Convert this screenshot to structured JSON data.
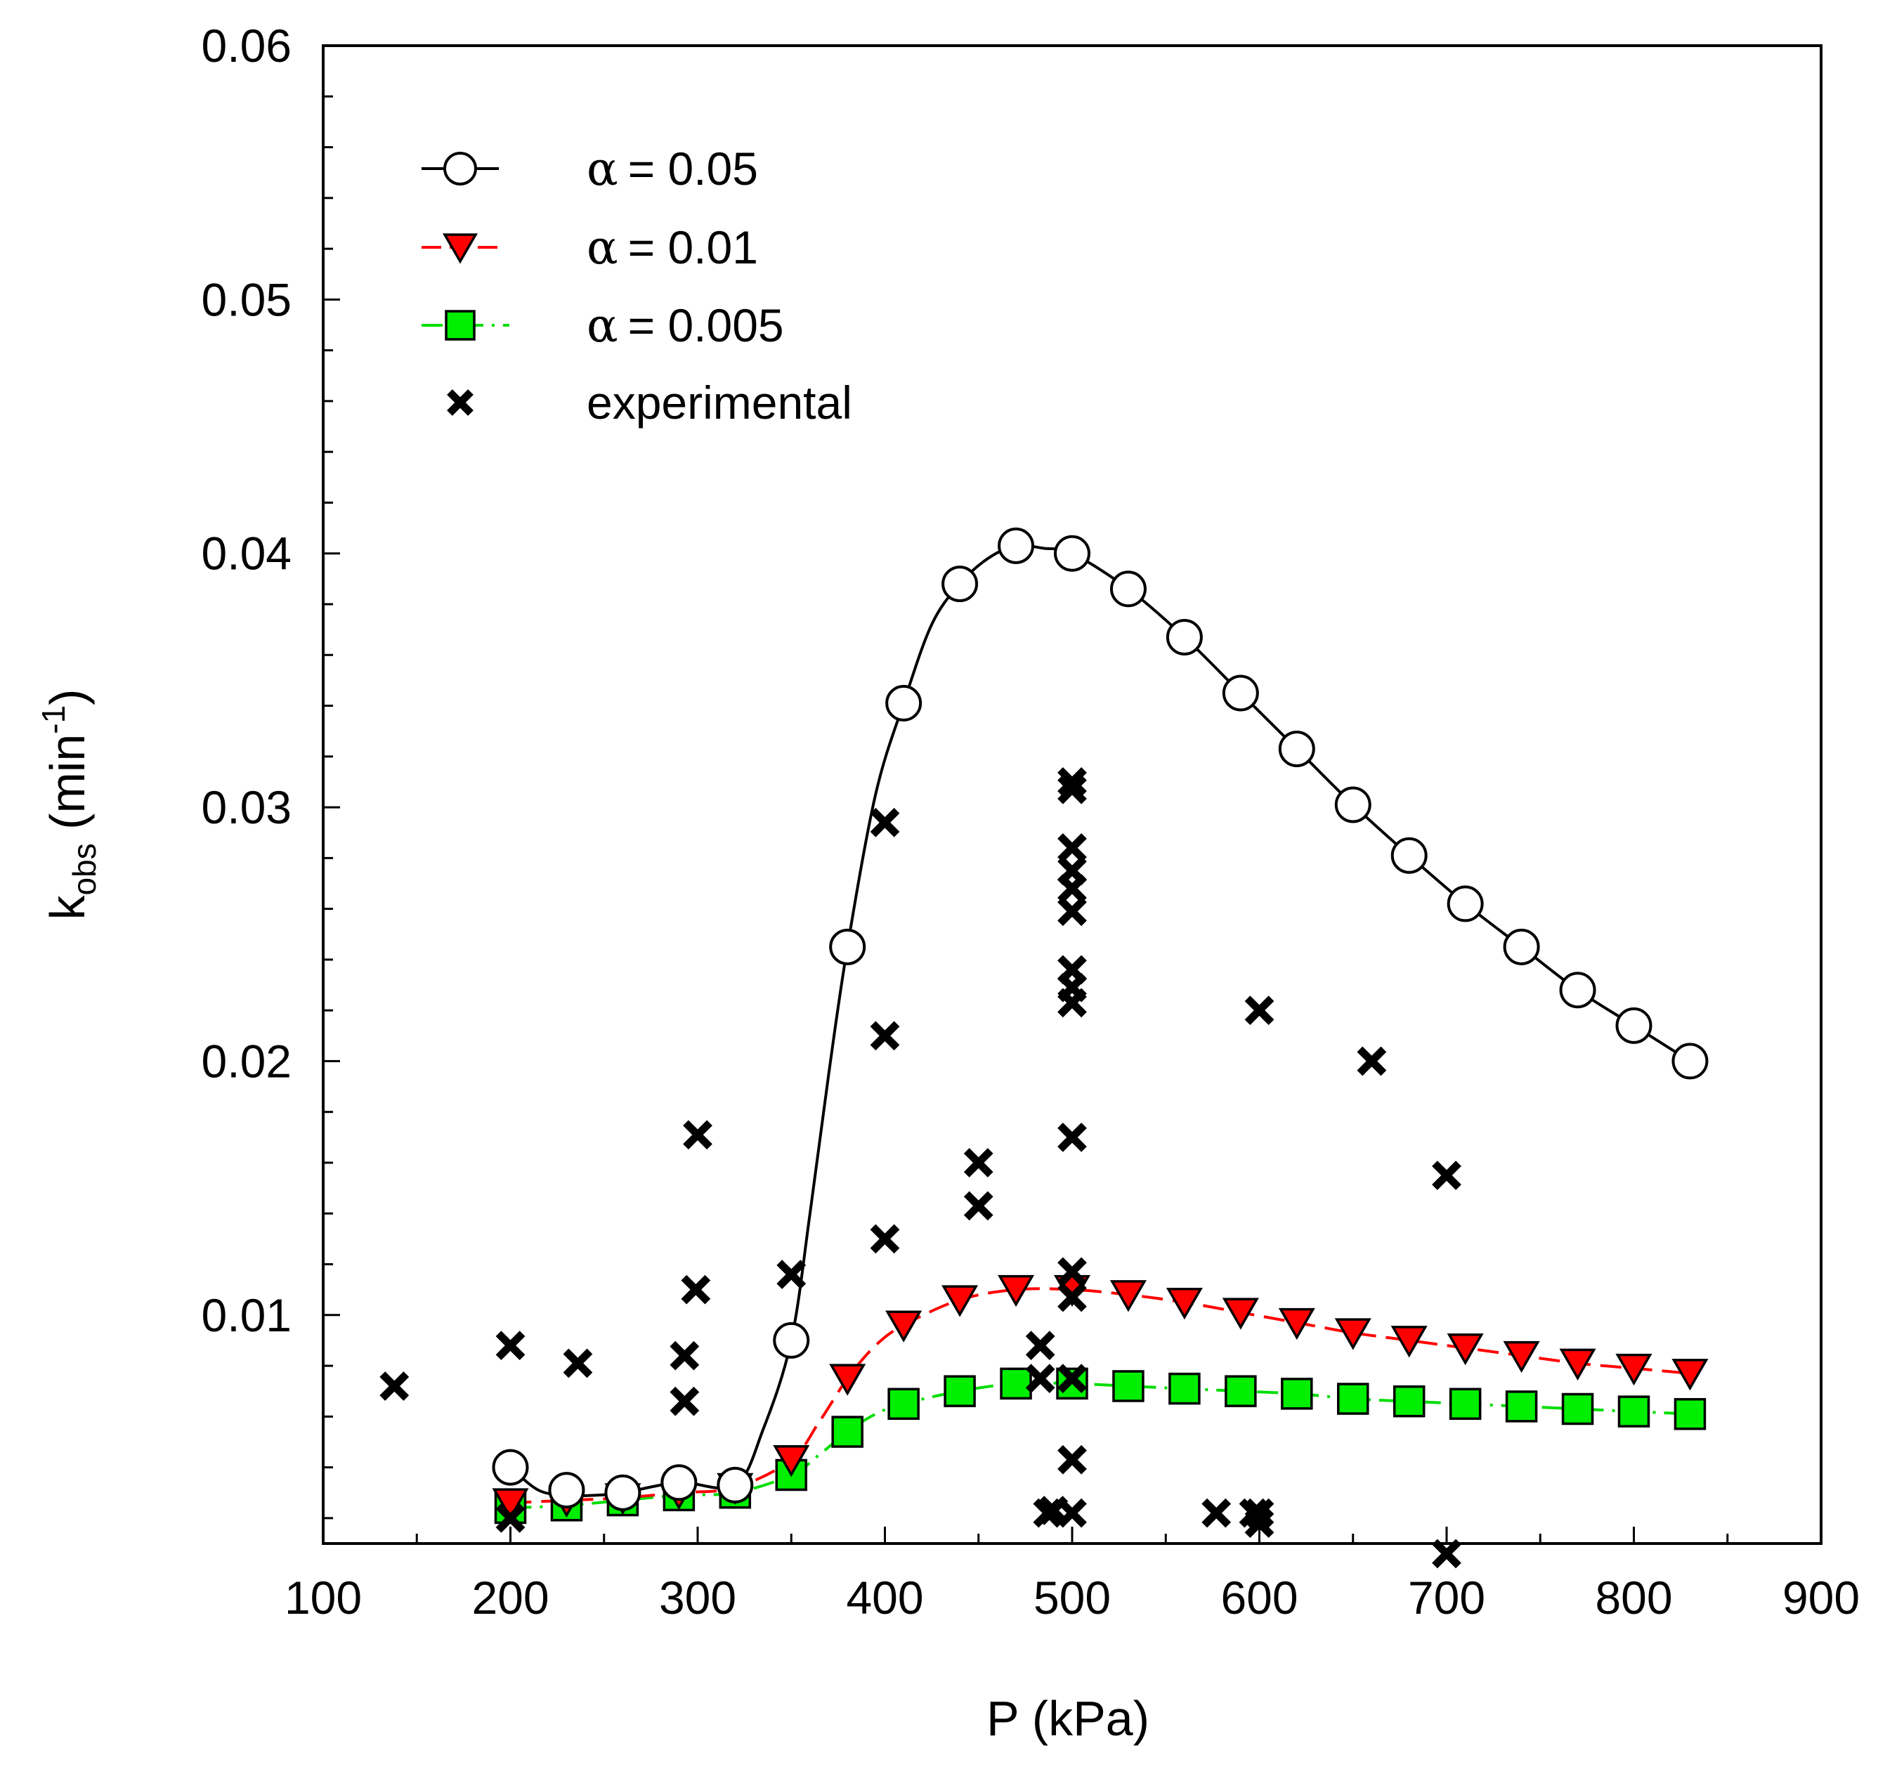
{
  "chart_data": {
    "type": "line",
    "xlabel": "P (kPa)",
    "ylabel": {
      "main": "k",
      "sub": "obs",
      "unit_open": " (min",
      "sup": "-1",
      "unit_close": ")"
    },
    "xlim": [
      100,
      900
    ],
    "ylim": [
      0.001,
      0.06
    ],
    "x_ticks": [
      "100",
      "200",
      "300",
      "400",
      "500",
      "600",
      "700",
      "800",
      "900"
    ],
    "y_ticks": [
      "0.01",
      "0.02",
      "0.03",
      "0.04",
      "0.05",
      "0.06"
    ],
    "grid": false,
    "legend_position": "top-left",
    "series": [
      {
        "name": "α = 0.05",
        "alpha_symbol": "α",
        "alpha_value": "= 0.05",
        "marker": "circle",
        "line_color": "#000000",
        "marker_fill": "#ffffff",
        "line_style": "solid",
        "x": [
          200,
          230,
          260,
          290,
          320,
          350,
          380,
          410,
          440,
          470,
          500,
          530,
          560,
          590,
          620,
          650,
          680,
          710,
          740,
          770,
          800,
          830
        ],
        "y": [
          0.004,
          0.0031,
          0.003,
          0.0034,
          0.0033,
          0.009,
          0.0245,
          0.0341,
          0.0388,
          0.0403,
          0.04,
          0.0386,
          0.0367,
          0.0345,
          0.0323,
          0.0301,
          0.0281,
          0.0262,
          0.0245,
          0.0228,
          0.0214,
          0.02
        ],
        "curve_x": [
          200,
          215,
          230,
          245,
          260,
          290,
          320,
          335,
          350,
          360,
          370,
          380,
          395,
          410,
          425,
          440,
          455,
          470,
          485,
          500,
          530,
          560,
          590,
          620,
          650,
          680,
          710,
          740,
          770,
          800,
          830
        ],
        "curve_y": [
          0.004,
          0.0031,
          0.0029,
          0.0029,
          0.003,
          0.0034,
          0.0033,
          0.0055,
          0.009,
          0.014,
          0.0195,
          0.0245,
          0.0305,
          0.0341,
          0.0372,
          0.0388,
          0.0398,
          0.0403,
          0.0402,
          0.04,
          0.0386,
          0.0367,
          0.0345,
          0.0323,
          0.0301,
          0.0281,
          0.0262,
          0.0245,
          0.0228,
          0.0214,
          0.02
        ]
      },
      {
        "name": "α = 0.01",
        "alpha_symbol": "α",
        "alpha_value": "= 0.01",
        "marker": "triangle-down",
        "line_color": "#ff0000",
        "marker_fill": "#ff0000",
        "line_style": "dashed",
        "x": [
          200,
          230,
          260,
          290,
          320,
          350,
          380,
          410,
          440,
          470,
          500,
          530,
          560,
          590,
          620,
          650,
          680,
          710,
          740,
          770,
          800,
          830
        ],
        "y": [
          0.0026,
          0.0027,
          0.0028,
          0.003,
          0.0032,
          0.0043,
          0.0075,
          0.0096,
          0.0106,
          0.011,
          0.011,
          0.0108,
          0.0105,
          0.0101,
          0.0097,
          0.0093,
          0.009,
          0.0087,
          0.0084,
          0.0081,
          0.0079,
          0.0077
        ],
        "curve_x": [
          200,
          230,
          260,
          290,
          320,
          350,
          365,
          380,
          395,
          410,
          440,
          470,
          500,
          530,
          560,
          590,
          620,
          650,
          680,
          710,
          740,
          770,
          800,
          830
        ],
        "curve_y": [
          0.0026,
          0.0027,
          0.0028,
          0.003,
          0.0032,
          0.0043,
          0.0058,
          0.0075,
          0.0088,
          0.0096,
          0.0106,
          0.011,
          0.011,
          0.0108,
          0.0105,
          0.0101,
          0.0097,
          0.0093,
          0.009,
          0.0087,
          0.0084,
          0.0081,
          0.0079,
          0.0077
        ]
      },
      {
        "name": "α = 0.005",
        "alpha_symbol": "α",
        "alpha_value": "= 0.005",
        "marker": "square",
        "line_color": "#00dd00",
        "marker_fill": "#00ee00",
        "line_style": "dashdot",
        "x": [
          200,
          230,
          260,
          290,
          320,
          350,
          380,
          410,
          440,
          470,
          500,
          530,
          560,
          590,
          620,
          650,
          680,
          710,
          740,
          770,
          800,
          830
        ],
        "y": [
          0.0024,
          0.0025,
          0.0027,
          0.0029,
          0.003,
          0.0037,
          0.0054,
          0.0065,
          0.007,
          0.0073,
          0.0073,
          0.0072,
          0.0071,
          0.007,
          0.0069,
          0.0067,
          0.0066,
          0.0065,
          0.0064,
          0.0063,
          0.0062,
          0.0061
        ],
        "curve_x": [
          200,
          230,
          260,
          290,
          320,
          350,
          365,
          380,
          395,
          410,
          440,
          470,
          500,
          530,
          560,
          590,
          620,
          650,
          680,
          710,
          740,
          770,
          800,
          830
        ],
        "curve_y": [
          0.0024,
          0.0025,
          0.0027,
          0.0029,
          0.003,
          0.0037,
          0.0045,
          0.0054,
          0.0061,
          0.0065,
          0.007,
          0.0073,
          0.0073,
          0.0072,
          0.0071,
          0.007,
          0.0069,
          0.0067,
          0.0066,
          0.0065,
          0.0064,
          0.0063,
          0.0062,
          0.0061
        ]
      }
    ],
    "experimental": {
      "name": "experimental",
      "marker": "x",
      "color": "#000000",
      "x": [
        138,
        200,
        200,
        236,
        293,
        293,
        299,
        300,
        350,
        400,
        400,
        400,
        450,
        450,
        483,
        483,
        487,
        490,
        500,
        500,
        500,
        500,
        500,
        500,
        500,
        500,
        500,
        500,
        500,
        500,
        500,
        500,
        500,
        577,
        597,
        600,
        600,
        600,
        660,
        700,
        700
      ],
      "y": [
        0.0072,
        0.0088,
        0.002,
        0.0081,
        0.0084,
        0.0066,
        0.011,
        0.0171,
        0.0116,
        0.0294,
        0.021,
        0.013,
        0.016,
        0.0143,
        0.0088,
        0.0075,
        0.0022,
        0.0023,
        0.031,
        0.0307,
        0.0284,
        0.0275,
        0.0268,
        0.0259,
        0.0236,
        0.0229,
        0.0223,
        0.017,
        0.0117,
        0.0107,
        0.0075,
        0.0043,
        0.0022,
        0.0022,
        0.0022,
        0.0022,
        0.0018,
        0.022,
        0.02,
        0.0155,
        0.0006
      ]
    }
  }
}
